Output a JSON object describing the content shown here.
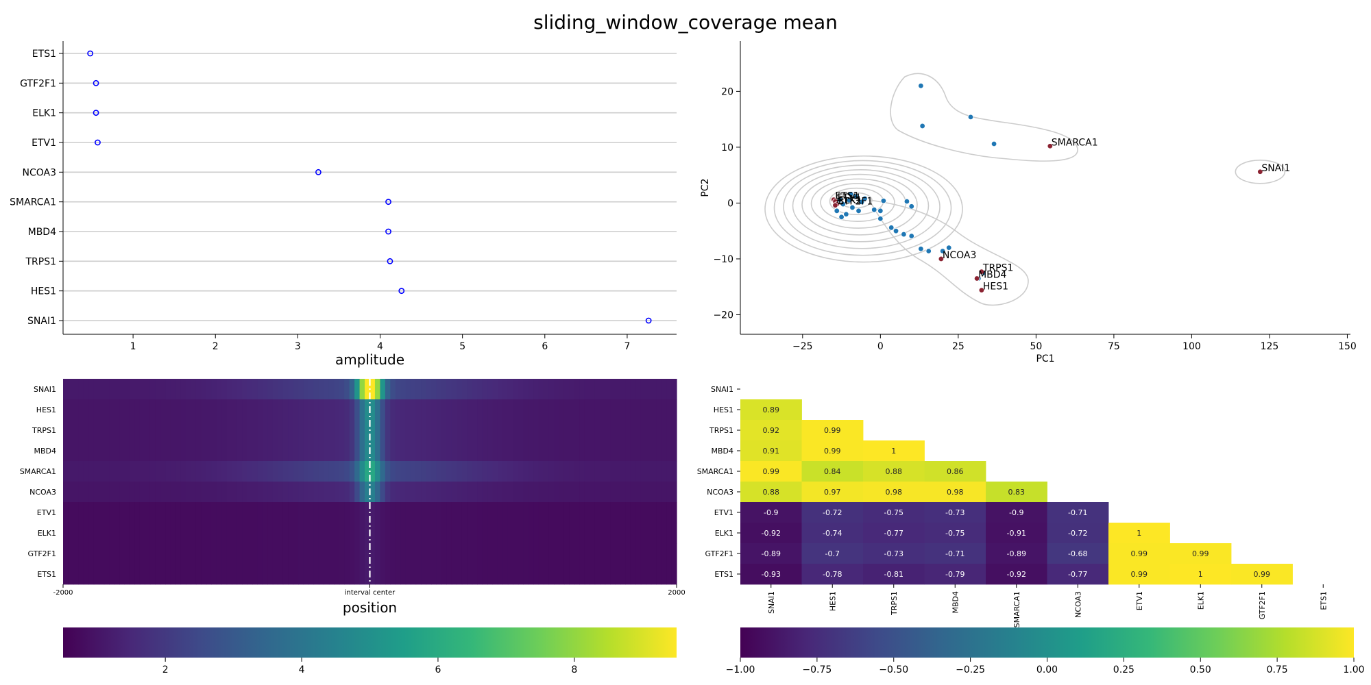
{
  "figure": {
    "title": "sliding_window_coverage mean"
  },
  "chart_data": [
    {
      "type": "scatter",
      "name": "amplitude-dot-plot",
      "xlabel": "amplitude",
      "ylabel": "",
      "xlim": [
        0.15,
        7.6
      ],
      "xticks": [
        1,
        2,
        3,
        4,
        5,
        6,
        7
      ],
      "categories": [
        "ETS1",
        "GTF2F1",
        "ELK1",
        "ETV1",
        "NCOA3",
        "SMARCA1",
        "MBD4",
        "TRPS1",
        "HES1",
        "SNAI1"
      ],
      "values": [
        0.48,
        0.55,
        0.55,
        0.57,
        3.25,
        4.1,
        4.1,
        4.12,
        4.26,
        7.26
      ],
      "grid": "horizontal",
      "marker_color": "#0000ff"
    },
    {
      "type": "scatter",
      "name": "pca-scatter",
      "xlabel": "PC1",
      "ylabel": "PC2",
      "xlim": [
        -45,
        151
      ],
      "ylim": [
        -23.5,
        29
      ],
      "xticks": [
        -25,
        0,
        25,
        50,
        75,
        100,
        125,
        150
      ],
      "yticks": [
        -20,
        -10,
        0,
        10,
        20
      ],
      "point_color": "#1f77b4",
      "highlight_color": "#8b2332",
      "points": [
        [
          13,
          21
        ],
        [
          13.5,
          13.8
        ],
        [
          29,
          15.4
        ],
        [
          36.5,
          10.6
        ],
        [
          1,
          0.4
        ],
        [
          8.5,
          0.3
        ],
        [
          10,
          -0.6
        ],
        [
          -2,
          -1.2
        ],
        [
          0,
          -1.4
        ],
        [
          0,
          -2.8
        ],
        [
          3.5,
          -4.4
        ],
        [
          5,
          -5
        ],
        [
          7.5,
          -5.6
        ],
        [
          10,
          -5.9
        ],
        [
          13,
          -8.2
        ],
        [
          15.5,
          -8.6
        ],
        [
          22,
          -8
        ],
        [
          20,
          -8.6
        ],
        [
          31.5,
          -13.5
        ],
        [
          33,
          -12.5
        ],
        [
          -8,
          1.2
        ],
        [
          -10,
          0.5
        ],
        [
          -6,
          0.2
        ],
        [
          -12,
          -0.2
        ],
        [
          -9,
          -0.8
        ],
        [
          -7,
          -1.4
        ],
        [
          -11,
          -2
        ],
        [
          -14,
          -1.4
        ],
        [
          -5,
          0.8
        ],
        [
          -13,
          0.6
        ],
        [
          -9.5,
          1.6
        ],
        [
          -12.5,
          -2.5
        ]
      ],
      "labeled_points": [
        {
          "label": "SMARCA1",
          "x": 54.5,
          "y": 10.2
        },
        {
          "label": "SNAI1",
          "x": 122,
          "y": 5.6
        },
        {
          "label": "NCOA3",
          "x": 19.5,
          "y": -10
        },
        {
          "label": "TRPS1",
          "x": 32.5,
          "y": -12.3
        },
        {
          "label": "MBD4",
          "x": 31,
          "y": -13.5
        },
        {
          "label": "HES1",
          "x": 32.5,
          "y": -15.6
        },
        {
          "label": "ETS1",
          "x": -15,
          "y": 0.6
        },
        {
          "label": "ETV1",
          "x": -14.5,
          "y": 0.3
        },
        {
          "label": "ELK1",
          "x": -14,
          "y": -0.2
        },
        {
          "label": "GTF2F1",
          "x": -14.5,
          "y": -0.4
        }
      ]
    },
    {
      "type": "heatmap",
      "name": "coverage-heatmap",
      "xlabel": "position",
      "xtick_labels": [
        "-2000",
        "interval center",
        "2000"
      ],
      "rows": [
        "SNAI1",
        "HES1",
        "TRPS1",
        "MBD4",
        "SMARCA1",
        "NCOA3",
        "ETV1",
        "ELK1",
        "GTF2F1",
        "ETS1"
      ],
      "colorbar_range": [
        0.5,
        9.5
      ],
      "colorbar_ticks": [
        2,
        4,
        6,
        8
      ],
      "center_line": "dashdot",
      "row_profiles": [
        {
          "base": 1.1,
          "broad": 1.3,
          "peak": 8.4
        },
        {
          "base": 1.0,
          "broad": 0.5,
          "peak": 3.5
        },
        {
          "base": 1.0,
          "broad": 0.5,
          "peak": 3.4
        },
        {
          "base": 1.0,
          "broad": 0.5,
          "peak": 3.4
        },
        {
          "base": 1.1,
          "broad": 1.3,
          "peak": 3.6
        },
        {
          "base": 1.0,
          "broad": 0.5,
          "peak": 3.0
        },
        {
          "base": 0.75,
          "broad": 0.1,
          "peak": 0.3
        },
        {
          "base": 0.75,
          "broad": 0.1,
          "peak": 0.3
        },
        {
          "base": 0.75,
          "broad": 0.1,
          "peak": 0.3
        },
        {
          "base": 0.75,
          "broad": 0.1,
          "peak": 0.3
        }
      ]
    },
    {
      "type": "heatmap",
      "name": "correlation-heatmap",
      "labels": [
        "SNAI1",
        "HES1",
        "TRPS1",
        "MBD4",
        "SMARCA1",
        "NCOA3",
        "ETV1",
        "ELK1",
        "GTF2F1",
        "ETS1"
      ],
      "colorbar_range": [
        -1,
        1
      ],
      "colorbar_ticks": [
        "−1.00",
        "−0.75",
        "−0.50",
        "−0.25",
        "0.00",
        "0.25",
        "0.50",
        "0.75",
        "1.00"
      ],
      "lower_triangle": [
        [],
        [
          "0.89"
        ],
        [
          "0.92",
          "0.99"
        ],
        [
          "0.91",
          "0.99",
          "1"
        ],
        [
          "0.99",
          "0.84",
          "0.88",
          "0.86"
        ],
        [
          "0.88",
          "0.97",
          "0.98",
          "0.98",
          "0.83"
        ],
        [
          "-0.9",
          "-0.72",
          "-0.75",
          "-0.73",
          "-0.9",
          "-0.71"
        ],
        [
          "-0.92",
          "-0.74",
          "-0.77",
          "-0.75",
          "-0.91",
          "-0.72",
          "1"
        ],
        [
          "-0.89",
          "-0.7",
          "-0.73",
          "-0.71",
          "-0.89",
          "-0.68",
          "0.99",
          "0.99"
        ],
        [
          "-0.93",
          "-0.78",
          "-0.81",
          "-0.79",
          "-0.92",
          "-0.77",
          "0.99",
          "1",
          "0.99"
        ]
      ]
    }
  ]
}
